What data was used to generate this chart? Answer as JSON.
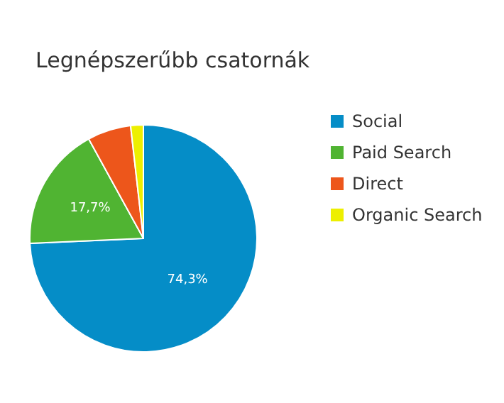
{
  "chart_data": {
    "type": "pie",
    "title": "Legnépszerűbb csatornák",
    "categories": [
      "Social",
      "Paid Search",
      "Direct",
      "Organic Search"
    ],
    "values": [
      74.3,
      17.7,
      6.2,
      1.8
    ],
    "colors": [
      "#058dc7",
      "#50b432",
      "#ed561b",
      "#edef00"
    ],
    "value_labels": [
      "74,3%",
      "17,7%",
      null,
      null
    ],
    "legend": "right"
  }
}
